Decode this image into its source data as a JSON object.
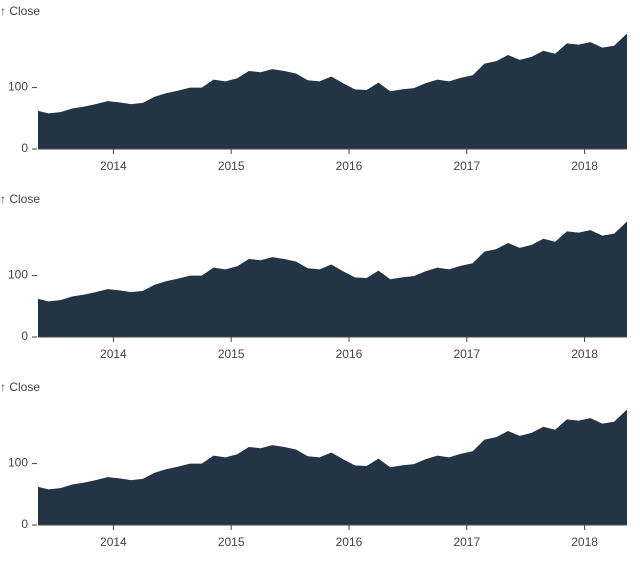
{
  "chart_data": [
    {
      "type": "area",
      "y_label": "↑ Close",
      "color": "#243447",
      "x": [
        2013.36,
        2013.45,
        2013.55,
        2013.65,
        2013.75,
        2013.85,
        2013.95,
        2014.05,
        2014.15,
        2014.25,
        2014.35,
        2014.45,
        2014.55,
        2014.65,
        2014.75,
        2014.85,
        2014.95,
        2015.05,
        2015.15,
        2015.25,
        2015.35,
        2015.45,
        2015.55,
        2015.65,
        2015.75,
        2015.85,
        2015.95,
        2016.05,
        2016.15,
        2016.25,
        2016.35,
        2016.45,
        2016.55,
        2016.65,
        2016.75,
        2016.85,
        2016.95,
        2017.05,
        2017.15,
        2017.25,
        2017.35,
        2017.45,
        2017.55,
        2017.65,
        2017.75,
        2017.85,
        2017.95,
        2018.05,
        2018.15,
        2018.25,
        2018.36
      ],
      "values": [
        62,
        58,
        60,
        66,
        69,
        73,
        78,
        76,
        73,
        75,
        85,
        91,
        95,
        100,
        100,
        113,
        110,
        115,
        127,
        125,
        130,
        127,
        123,
        112,
        110,
        118,
        107,
        97,
        96,
        108,
        94,
        97,
        99,
        107,
        113,
        110,
        116,
        120,
        139,
        143,
        153,
        145,
        150,
        160,
        155,
        172,
        170,
        174,
        165,
        168,
        188
      ],
      "xlim": [
        2013.36,
        2018.36
      ],
      "xticks": [
        2014,
        2015,
        2016,
        2017,
        2018
      ],
      "ylim": [
        0,
        210
      ],
      "yticks": [
        0,
        100
      ]
    },
    {
      "type": "area",
      "y_label": "↑ Close",
      "color": "#243447",
      "x": [
        2013.36,
        2013.45,
        2013.55,
        2013.65,
        2013.75,
        2013.85,
        2013.95,
        2014.05,
        2014.15,
        2014.25,
        2014.35,
        2014.45,
        2014.55,
        2014.65,
        2014.75,
        2014.85,
        2014.95,
        2015.05,
        2015.15,
        2015.25,
        2015.35,
        2015.45,
        2015.55,
        2015.65,
        2015.75,
        2015.85,
        2015.95,
        2016.05,
        2016.15,
        2016.25,
        2016.35,
        2016.45,
        2016.55,
        2016.65,
        2016.75,
        2016.85,
        2016.95,
        2017.05,
        2017.15,
        2017.25,
        2017.35,
        2017.45,
        2017.55,
        2017.65,
        2017.75,
        2017.85,
        2017.95,
        2018.05,
        2018.15,
        2018.25,
        2018.36
      ],
      "values": [
        62,
        58,
        60,
        66,
        69,
        73,
        78,
        76,
        73,
        75,
        85,
        91,
        95,
        100,
        100,
        113,
        110,
        115,
        127,
        125,
        130,
        127,
        123,
        112,
        110,
        118,
        107,
        97,
        96,
        108,
        94,
        97,
        99,
        107,
        113,
        110,
        116,
        120,
        139,
        143,
        153,
        145,
        150,
        160,
        155,
        172,
        170,
        174,
        165,
        168,
        188
      ],
      "xlim": [
        2013.36,
        2018.36
      ],
      "xticks": [
        2014,
        2015,
        2016,
        2017,
        2018
      ],
      "ylim": [
        0,
        210
      ],
      "yticks": [
        0,
        100
      ]
    },
    {
      "type": "area",
      "y_label": "↑ Close",
      "color": "#243447",
      "x": [
        2013.36,
        2013.45,
        2013.55,
        2013.65,
        2013.75,
        2013.85,
        2013.95,
        2014.05,
        2014.15,
        2014.25,
        2014.35,
        2014.45,
        2014.55,
        2014.65,
        2014.75,
        2014.85,
        2014.95,
        2015.05,
        2015.15,
        2015.25,
        2015.35,
        2015.45,
        2015.55,
        2015.65,
        2015.75,
        2015.85,
        2015.95,
        2016.05,
        2016.15,
        2016.25,
        2016.35,
        2016.45,
        2016.55,
        2016.65,
        2016.75,
        2016.85,
        2016.95,
        2017.05,
        2017.15,
        2017.25,
        2017.35,
        2017.45,
        2017.55,
        2017.65,
        2017.75,
        2017.85,
        2017.95,
        2018.05,
        2018.15,
        2018.25,
        2018.36
      ],
      "values": [
        62,
        58,
        60,
        66,
        69,
        73,
        78,
        76,
        73,
        75,
        85,
        91,
        95,
        100,
        100,
        113,
        110,
        115,
        127,
        125,
        130,
        127,
        123,
        112,
        110,
        118,
        107,
        97,
        96,
        108,
        94,
        97,
        99,
        107,
        113,
        110,
        116,
        120,
        139,
        143,
        153,
        145,
        150,
        160,
        155,
        172,
        170,
        174,
        165,
        168,
        188
      ],
      "xlim": [
        2013.36,
        2018.36
      ],
      "xticks": [
        2014,
        2015,
        2016,
        2017,
        2018
      ],
      "ylim": [
        0,
        210
      ],
      "yticks": [
        0,
        100
      ]
    }
  ]
}
